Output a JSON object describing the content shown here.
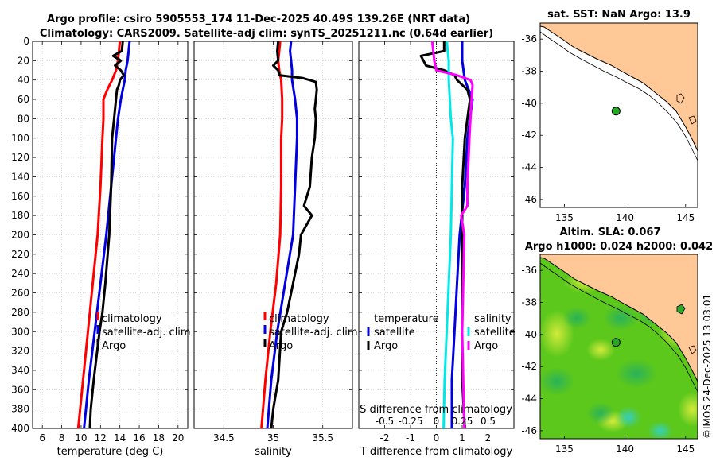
{
  "title": {
    "line1": "Argo profile: csiro 5905553_174 11-Dec-2025 40.49S 139.26E (NRT data)",
    "line2": "Climatology: CARS2009. Satellite-adj clim: synTS_20251211.nc (0.64d earlier)"
  },
  "watermark": "©IMOS 24-Dec-2025 13:03:01",
  "colors": {
    "climatology": "#ff0000",
    "satellite": "#0000e0",
    "argo": "#000000",
    "cyan": "#00e8e8",
    "magenta": "#ff00ff",
    "land": "#ffc896",
    "ocean": "#ffffff",
    "argo_dot": "#22aa22"
  },
  "chart_data": [
    {
      "type": "line",
      "id": "temperature",
      "xlabel": "temperature (deg C)",
      "ylabel": "",
      "xlim": [
        5,
        21
      ],
      "ylim": [
        400,
        0
      ],
      "xticks": [
        6,
        8,
        10,
        12,
        14,
        16,
        18,
        20
      ],
      "yticks": [
        0,
        20,
        40,
        60,
        80,
        100,
        120,
        140,
        160,
        180,
        200,
        220,
        240,
        260,
        280,
        300,
        320,
        340,
        360,
        380,
        400
      ],
      "grid": true,
      "legend": {
        "position": "middle-right",
        "entries": [
          "climatology",
          "satellite-adj. clim",
          "Argo"
        ]
      },
      "series": [
        {
          "name": "climatology",
          "color": "#ff0000",
          "depth": [
            0,
            10,
            20,
            30,
            40,
            50,
            60,
            70,
            80,
            100,
            150,
            200,
            250,
            300,
            350,
            400
          ],
          "values": [
            14.0,
            13.9,
            13.8,
            13.6,
            13.2,
            12.7,
            12.3,
            12.3,
            12.3,
            12.2,
            12.0,
            11.7,
            11.2,
            10.7,
            10.2,
            9.7
          ]
        },
        {
          "name": "satellite-adj. clim",
          "color": "#0000e0",
          "depth": [
            0,
            10,
            20,
            30,
            40,
            50,
            60,
            80,
            100,
            150,
            200,
            250,
            300,
            350,
            400
          ],
          "values": [
            15.0,
            14.9,
            14.8,
            14.6,
            14.5,
            14.3,
            14.1,
            13.8,
            13.6,
            13.1,
            12.6,
            12.0,
            11.4,
            10.8,
            10.3
          ]
        },
        {
          "name": "Argo",
          "color": "#000000",
          "depth": [
            0,
            10,
            15,
            20,
            25,
            30,
            35,
            40,
            45,
            50,
            60,
            80,
            100,
            150,
            200,
            250,
            280,
            300,
            350,
            380,
            400
          ],
          "values": [
            14.3,
            14.2,
            13.3,
            14.1,
            13.5,
            14.1,
            14.4,
            14.0,
            13.9,
            13.7,
            13.6,
            13.4,
            13.2,
            13.1,
            12.9,
            12.5,
            12.2,
            11.9,
            11.3,
            11.0,
            10.9
          ]
        }
      ]
    },
    {
      "type": "line",
      "id": "salinity",
      "xlabel": "salinity",
      "ylabel": "",
      "xlim": [
        34.2,
        35.8
      ],
      "ylim": [
        400,
        0
      ],
      "xticks": [
        34.5,
        35,
        35.5
      ],
      "grid": true,
      "legend": {
        "position": "middle-right",
        "entries": [
          "climatology",
          "satellite-adj. clim",
          "Argo"
        ]
      },
      "series": [
        {
          "name": "climatology",
          "color": "#ff0000",
          "depth": [
            0,
            10,
            20,
            30,
            40,
            60,
            80,
            100,
            150,
            200,
            250,
            300,
            350,
            400
          ],
          "values": [
            35.07,
            35.06,
            35.05,
            35.06,
            35.08,
            35.09,
            35.09,
            35.08,
            35.08,
            35.07,
            35.03,
            34.97,
            34.92,
            34.88
          ]
        },
        {
          "name": "satellite-adj. clim",
          "color": "#0000e0",
          "depth": [
            0,
            10,
            20,
            30,
            40,
            60,
            80,
            100,
            150,
            200,
            250,
            300,
            350,
            400
          ],
          "values": [
            35.18,
            35.17,
            35.18,
            35.19,
            35.19,
            35.22,
            35.24,
            35.24,
            35.22,
            35.2,
            35.12,
            35.04,
            34.98,
            34.94
          ]
        },
        {
          "name": "Argo",
          "color": "#000000",
          "depth": [
            0,
            10,
            20,
            25,
            30,
            35,
            38,
            42,
            50,
            60,
            70,
            80,
            100,
            120,
            150,
            170,
            180,
            200,
            220,
            250,
            280,
            300,
            350,
            380,
            400
          ],
          "values": [
            35.05,
            35.04,
            35.05,
            35.0,
            35.05,
            35.06,
            35.3,
            35.43,
            35.44,
            35.43,
            35.42,
            35.43,
            35.42,
            35.39,
            35.37,
            35.31,
            35.39,
            35.28,
            35.26,
            35.2,
            35.14,
            35.08,
            35.05,
            35.0,
            34.98
          ]
        }
      ]
    },
    {
      "type": "line",
      "id": "differences",
      "xlabel": "T difference from climatology",
      "xlabel_top": "S difference from climatology",
      "xlim": [
        -3,
        3
      ],
      "ylim": [
        400,
        0
      ],
      "xticks": [
        -2,
        -1,
        0,
        1,
        2
      ],
      "xticks_salinity": [
        "-0.5",
        "-0.25",
        "0",
        "0.25",
        "0.5"
      ],
      "grid": true,
      "legend": {
        "position": "middle",
        "temperature_title": "temperature",
        "salinity_title": "salinity",
        "entries": [
          "satellite",
          "Argo",
          "satellite",
          "Argo"
        ]
      },
      "series": [
        {
          "name": "temperature satellite",
          "color": "#0000e0",
          "depth": [
            0,
            20,
            40,
            60,
            80,
            100,
            150,
            200,
            250,
            300,
            350,
            400
          ],
          "values": [
            1.0,
            1.0,
            1.1,
            1.4,
            1.3,
            1.2,
            1.1,
            0.9,
            0.8,
            0.7,
            0.6,
            0.6
          ]
        },
        {
          "name": "temperature Argo",
          "color": "#000000",
          "depth": [
            0,
            10,
            15,
            20,
            25,
            30,
            35,
            40,
            45,
            50,
            60,
            80,
            100,
            150,
            200,
            250,
            300,
            350,
            400
          ],
          "values": [
            0.3,
            0.3,
            -0.6,
            -0.5,
            -0.4,
            0.3,
            0.7,
            0.8,
            1.0,
            1.2,
            1.3,
            1.2,
            1.1,
            1.0,
            1.0,
            1.0,
            1.0,
            1.0,
            1.1
          ]
        },
        {
          "name": "salinity satellite",
          "color": "#00e8e8",
          "depth": [
            0,
            20,
            40,
            60,
            80,
            100,
            150,
            200,
            250,
            300,
            350,
            400
          ],
          "values": [
            0.1,
            0.12,
            0.12,
            0.13,
            0.14,
            0.16,
            0.15,
            0.14,
            0.12,
            0.1,
            0.08,
            0.07
          ]
        },
        {
          "name": "salinity Argo",
          "color": "#ff00ff",
          "depth": [
            0,
            10,
            20,
            30,
            35,
            40,
            45,
            60,
            80,
            100,
            150,
            170,
            180,
            200,
            250,
            300,
            350,
            400
          ],
          "values": [
            -0.04,
            -0.03,
            -0.02,
            0.0,
            0.2,
            0.33,
            0.35,
            0.34,
            0.33,
            0.32,
            0.3,
            0.3,
            0.24,
            0.27,
            0.26,
            0.25,
            0.26,
            0.27
          ]
        }
      ]
    },
    {
      "type": "map",
      "id": "sst",
      "title": "sat. SST: NaN Argo: 13.9",
      "xlim": [
        133,
        146
      ],
      "ylim": [
        -46.5,
        -35
      ],
      "xticks": [
        135,
        140,
        145
      ],
      "yticks": [
        -36,
        -38,
        -40,
        -42,
        -44,
        -46
      ],
      "point": {
        "lon": 139.26,
        "lat": -40.49
      }
    },
    {
      "type": "map",
      "id": "sla",
      "title_line1": "Altim. SLA: 0.067",
      "title_line2": "Argo h1000: 0.024 h2000: 0.042",
      "xlim": [
        133,
        146
      ],
      "ylim": [
        -46.5,
        -35
      ],
      "xticks": [
        135,
        140,
        145
      ],
      "yticks": [
        -36,
        -38,
        -40,
        -42,
        -44,
        -46
      ],
      "point": {
        "lon": 139.26,
        "lat": -40.49
      }
    }
  ]
}
